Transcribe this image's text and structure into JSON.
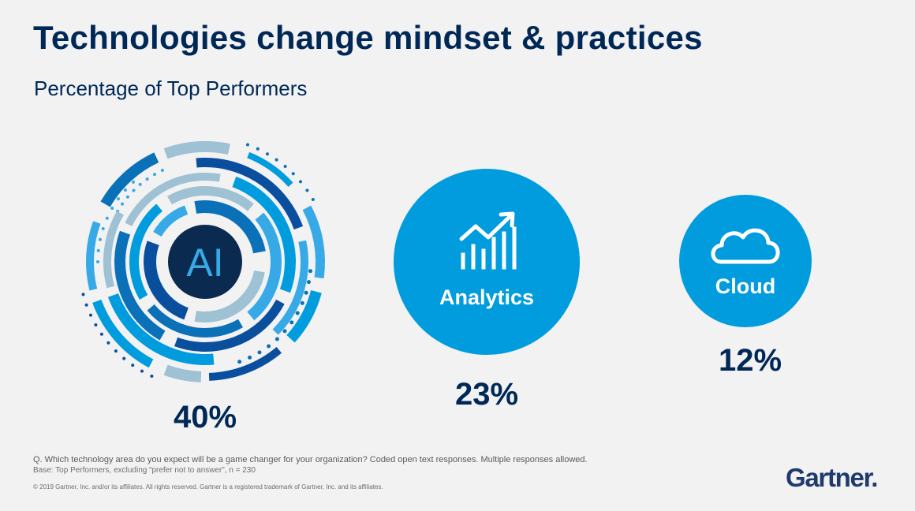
{
  "colors": {
    "navy": "#002856",
    "blue": "#009cde",
    "blue_light": "#37a9e6",
    "blue_mid": "#0a70b8",
    "blue_dark": "#0a4f9e",
    "grey_blue": "#9ec1d4",
    "ai_disc": "#0b2a4f",
    "background": "#f2f2f2"
  },
  "slide": {
    "title": "Technologies change mindset & practices",
    "subtitle": "Percentage of Top Performers"
  },
  "chart_data": {
    "type": "bubble",
    "title": "Technologies change mindset & practices",
    "subtitle": "Percentage of Top Performers",
    "unit": "%",
    "categories": [
      "AI",
      "Analytics",
      "Cloud"
    ],
    "values": [
      40,
      23,
      12
    ],
    "value_labels": [
      "40%",
      "23%",
      "12%"
    ],
    "icons": [
      "ai-rings-icon",
      "trend-chart-icon",
      "cloud-icon"
    ]
  },
  "footer": {
    "question": "Q. Which technology area do you expect will be a game changer for your organization? Coded open text responses. Multiple responses allowed.",
    "base": "Base: Top Performers, excluding “prefer not to answer”, n = 230",
    "copyright": "© 2019 Gartner, Inc. and/or its affiliates. All rights reserved. Gartner is a registered trademark of Gartner, Inc. and its affiliates.",
    "logo_text": "Gartner",
    "logo_dot": "."
  }
}
